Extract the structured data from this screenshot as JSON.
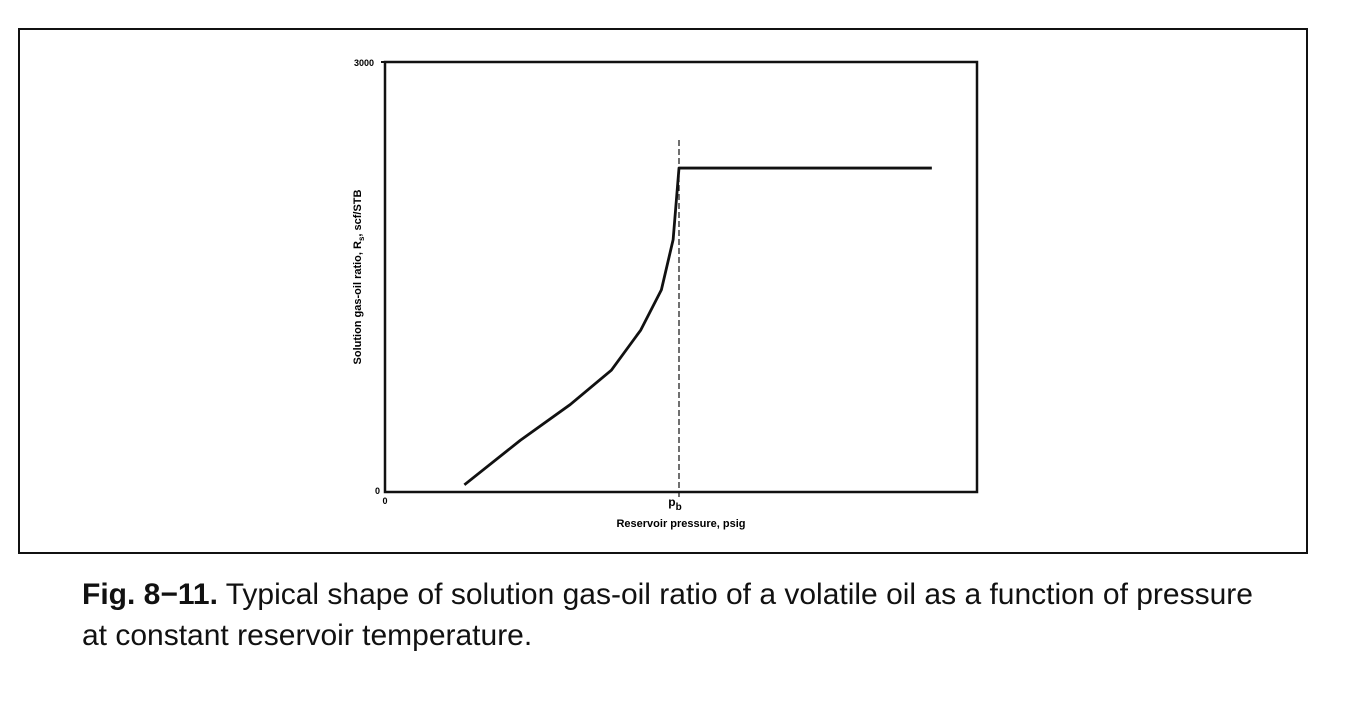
{
  "chart_data": {
    "type": "line",
    "xlabel": "Reservoir pressure, psig",
    "ylabel": "Solution gas-oil ratio, R",
    "ylabel_subscript": "s",
    "ylabel_units": ", scf/STB",
    "x_tick_labels": [
      "0",
      "p",
      "b"
    ],
    "y_tick_labels": [
      "0",
      "3000"
    ],
    "ylim": [
      0,
      3000
    ],
    "xlim_relative_to_pb": [
      0,
      2.01
    ],
    "series": [
      {
        "name": "Rs",
        "x_relative_to_pb": [
          0.27,
          0.46,
          0.63,
          0.77,
          0.87,
          0.94,
          0.98,
          1.0,
          1.86
        ],
        "values": [
          50,
          360,
          610,
          850,
          1130,
          1410,
          1760,
          2260,
          2260
        ]
      }
    ],
    "annotations": [
      {
        "type": "vertical-dashed-line",
        "at_relative_to_pb": 1.0,
        "label": "p_b"
      }
    ],
    "grid": false
  },
  "caption": {
    "label": "Fig. 8−11.",
    "text": " Typical shape of solution gas-oil ratio of a volatile oil as a function of pressure at constant reservoir temperature."
  }
}
